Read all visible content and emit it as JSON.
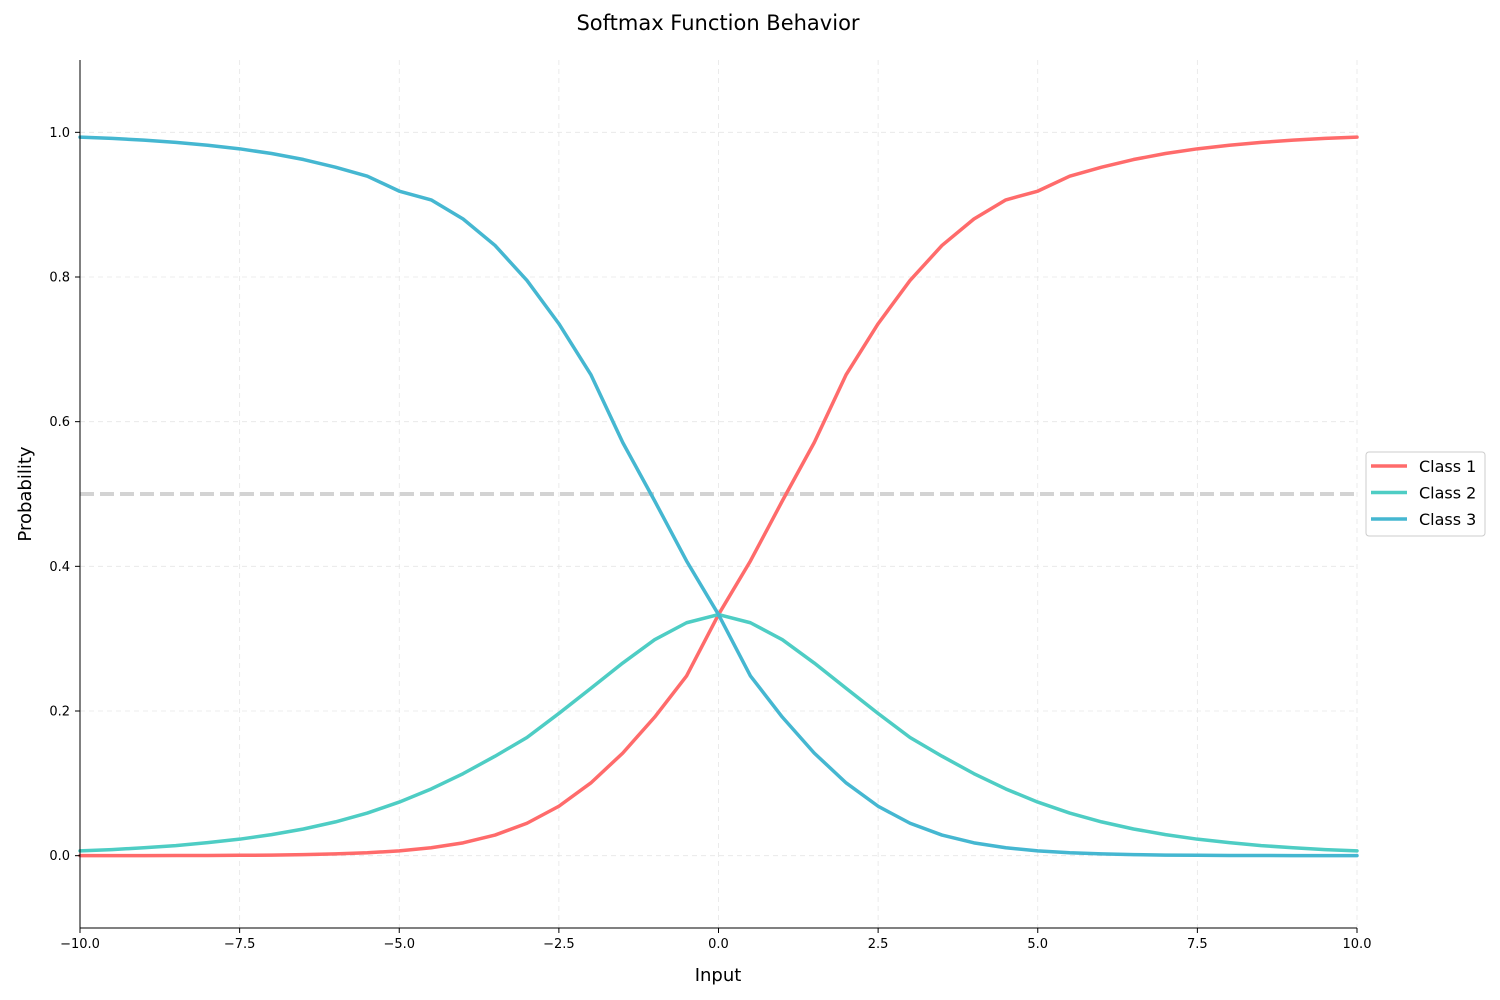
{
  "chart_data": {
    "type": "line",
    "title": "Softmax Function Behavior",
    "xlabel": "Input",
    "ylabel": "Probability",
    "xlim": [
      -10,
      10
    ],
    "ylim": [
      -0.1,
      1.1
    ],
    "x_ticks": [
      -10,
      -7.5,
      -5,
      -2.5,
      0,
      2.5,
      5,
      7.5,
      10
    ],
    "x_tick_labels": [
      "−10.0",
      "−7.5",
      "−5.0",
      "−2.5",
      "0.0",
      "2.5",
      "5.0",
      "7.5",
      "10.0"
    ],
    "y_ticks": [
      0,
      0.2,
      0.4,
      0.6,
      0.8,
      1.0
    ],
    "y_tick_labels": [
      "0.0",
      "0.2",
      "0.4",
      "0.6",
      "0.8",
      "1.0"
    ],
    "grid": true,
    "legend_position": "center-right",
    "reference_line": {
      "y": 0.5,
      "style": "dashed",
      "color": "#d3d3d3"
    },
    "x": [
      -10,
      -9.5,
      -9,
      -8.5,
      -8,
      -7.5,
      -7,
      -6.5,
      -6,
      -5.5,
      -5,
      -4.5,
      -4,
      -3.5,
      -3,
      -2.5,
      -2,
      -1.5,
      -1,
      -0.5,
      0,
      0.5,
      1,
      1.5,
      2,
      2.5,
      3,
      3.5,
      4,
      4.5,
      5,
      5.5,
      6,
      6.5,
      7,
      7.5,
      8,
      8.5,
      9,
      9.5,
      10
    ],
    "series": [
      {
        "name": "Class 1",
        "color": "#ff6b6b",
        "values": [
          0.0,
          0.0001,
          0.0001,
          0.0002,
          0.0003,
          0.0005,
          0.0008,
          0.0014,
          0.0024,
          0.004,
          0.0066,
          0.0109,
          0.0177,
          0.0285,
          0.0448,
          0.0683,
          0.1005,
          0.1418,
          0.1915,
          0.2485,
          0.3333,
          0.4074,
          0.4905,
          0.5712,
          0.6652,
          0.7354,
          0.7953,
          0.8436,
          0.8802,
          0.9066,
          0.9187,
          0.9394,
          0.9518,
          0.9624,
          0.9707,
          0.9772,
          0.9822,
          0.9861,
          0.9892,
          0.9916,
          0.9933
        ]
      },
      {
        "name": "Class 2",
        "color": "#4ecdc4",
        "values": [
          0.0067,
          0.0084,
          0.011,
          0.0139,
          0.018,
          0.0228,
          0.0291,
          0.0369,
          0.0467,
          0.0589,
          0.0741,
          0.0922,
          0.1134,
          0.1375,
          0.1634,
          0.1966,
          0.2312,
          0.2663,
          0.2986,
          0.322,
          0.3333,
          0.322,
          0.2986,
          0.2663,
          0.2312,
          0.1966,
          0.1634,
          0.1375,
          0.1134,
          0.0922,
          0.0741,
          0.0589,
          0.0467,
          0.0369,
          0.0291,
          0.0228,
          0.018,
          0.0139,
          0.011,
          0.0084,
          0.0067
        ]
      },
      {
        "name": "Class 3",
        "color": "#45b7d1",
        "values": [
          0.9933,
          0.9916,
          0.9892,
          0.9861,
          0.9822,
          0.9772,
          0.9707,
          0.9624,
          0.9518,
          0.9394,
          0.9187,
          0.9066,
          0.8802,
          0.8436,
          0.7953,
          0.7354,
          0.6652,
          0.5712,
          0.4905,
          0.4074,
          0.3333,
          0.2485,
          0.1915,
          0.1418,
          0.1005,
          0.0683,
          0.0448,
          0.0285,
          0.0177,
          0.0109,
          0.0066,
          0.004,
          0.0024,
          0.0014,
          0.0008,
          0.0005,
          0.0003,
          0.0002,
          0.0001,
          0.0001,
          0.0
        ]
      }
    ]
  }
}
